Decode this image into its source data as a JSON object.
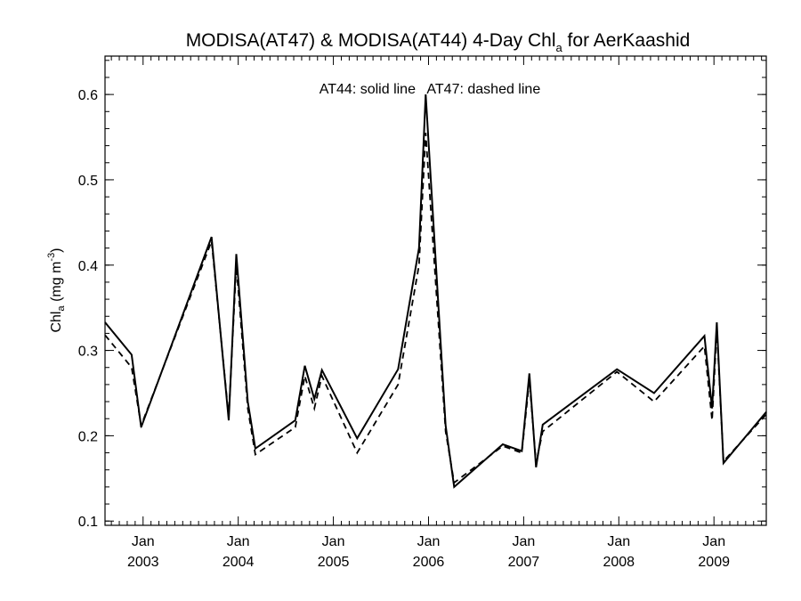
{
  "chart_data": {
    "type": "line",
    "title": {
      "main": "MODISA(AT47) & MODISA(AT44) 4-Day Chl",
      "sub": "a",
      "rest": " for AerKaashid"
    },
    "ylabel": {
      "main": "Chl",
      "sub": "a",
      "unit": " (mg m",
      "sup": "-3",
      "close": ")"
    },
    "annotation": "AT44: solid line   AT47: dashed line",
    "xlim": [
      2002.6,
      2009.55
    ],
    "ylim": [
      0.095,
      0.645
    ],
    "y_ticks": [
      0.1,
      0.2,
      0.3,
      0.4,
      0.5,
      0.6
    ],
    "y_tick_labels": [
      "0.1",
      "0.2",
      "0.3",
      "0.4",
      "0.5",
      "0.6"
    ],
    "x_ticks": [
      {
        "x": 2003.0,
        "month": "Jan",
        "year": "2003"
      },
      {
        "x": 2004.0,
        "month": "Jan",
        "year": "2004"
      },
      {
        "x": 2005.0,
        "month": "Jan",
        "year": "2005"
      },
      {
        "x": 2006.0,
        "month": "Jan",
        "year": "2006"
      },
      {
        "x": 2007.0,
        "month": "Jan",
        "year": "2007"
      },
      {
        "x": 2008.0,
        "month": "Jan",
        "year": "2008"
      },
      {
        "x": 2009.0,
        "month": "Jan",
        "year": "2009"
      }
    ],
    "series": [
      {
        "name": "AT44",
        "style": "solid",
        "color": "#000000",
        "x": [
          2002.6,
          2002.88,
          2002.98,
          2003.72,
          2003.9,
          2003.98,
          2004.1,
          2004.18,
          2004.6,
          2004.7,
          2004.8,
          2004.88,
          2005.25,
          2005.68,
          2005.9,
          2005.97,
          2006.18,
          2006.27,
          2006.78,
          2006.98,
          2007.06,
          2007.13,
          2007.2,
          2007.98,
          2008.37,
          2008.9,
          2008.98,
          2009.03,
          2009.1,
          2009.55
        ],
        "y": [
          0.333,
          0.295,
          0.21,
          0.433,
          0.218,
          0.413,
          0.24,
          0.185,
          0.218,
          0.282,
          0.243,
          0.277,
          0.197,
          0.278,
          0.42,
          0.6,
          0.212,
          0.14,
          0.19,
          0.182,
          0.273,
          0.163,
          0.213,
          0.278,
          0.25,
          0.317,
          0.232,
          0.333,
          0.168,
          0.228
        ]
      },
      {
        "name": "AT47",
        "style": "dashed",
        "color": "#000000",
        "x": [
          2002.6,
          2002.88,
          2002.98,
          2003.72,
          2003.9,
          2003.98,
          2004.1,
          2004.18,
          2004.6,
          2004.7,
          2004.8,
          2004.88,
          2005.25,
          2005.68,
          2005.9,
          2005.97,
          2006.18,
          2006.27,
          2006.78,
          2006.98,
          2007.06,
          2007.13,
          2007.2,
          2007.98,
          2008.37,
          2008.9,
          2008.98,
          2009.03,
          2009.1,
          2009.55
        ],
        "y": [
          0.318,
          0.28,
          0.212,
          0.428,
          0.222,
          0.4,
          0.232,
          0.178,
          0.21,
          0.27,
          0.232,
          0.27,
          0.18,
          0.26,
          0.4,
          0.555,
          0.205,
          0.145,
          0.188,
          0.18,
          0.265,
          0.168,
          0.205,
          0.275,
          0.24,
          0.305,
          0.218,
          0.325,
          0.17,
          0.225
        ]
      }
    ]
  }
}
